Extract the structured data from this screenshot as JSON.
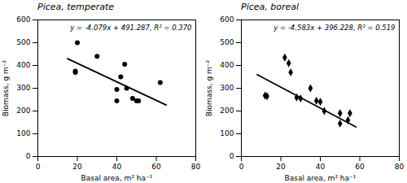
{
  "chart_data": [
    {
      "type": "scatter",
      "title": "Picea, temperate",
      "annotation": "y = -4.079x + 491.287, R² = 0.370",
      "series": [
        {
          "type": "scatter",
          "marker": "circle",
          "color": "black",
          "x": [
            19,
            19,
            20,
            30,
            40,
            40,
            42,
            44,
            45,
            48,
            50,
            51,
            62
          ],
          "values": [
            375,
            370,
            500,
            440,
            295,
            245,
            350,
            405,
            300,
            255,
            245,
            245,
            325
          ]
        },
        {
          "type": "line",
          "color": "black",
          "x": [
            15,
            65
          ],
          "values": [
            430.102,
            226.152
          ]
        }
      ],
      "xlabel": "Basal area, m² ha⁻¹",
      "ylabel": "Biomass, g m⁻²",
      "xlim": [
        0,
        80
      ],
      "ylim": [
        0,
        600
      ],
      "xticks": [
        0,
        20,
        40,
        60,
        80
      ],
      "yticks": [
        0,
        100,
        200,
        300,
        400,
        500,
        600
      ],
      "grid": false
    },
    {
      "type": "scatter",
      "title": "Picea, boreal",
      "annotation": "y = -4.583x + 396.228, R² = 0.519",
      "series": [
        {
          "type": "scatter",
          "marker": "diamond",
          "color": "black",
          "x": [
            12,
            13,
            22,
            24,
            25,
            28,
            30,
            35,
            38,
            40,
            42,
            50,
            50,
            54,
            55
          ],
          "values": [
            268,
            265,
            435,
            410,
            370,
            260,
            255,
            300,
            245,
            240,
            200,
            145,
            190,
            160,
            190
          ]
        },
        {
          "type": "line",
          "color": "black",
          "x": [
            8,
            58
          ],
          "values": [
            359.564,
            130.414
          ]
        }
      ],
      "xlabel": "Basal area, m² ha⁻¹",
      "ylabel": "Biomass, g m⁻²",
      "xlim": [
        0,
        80
      ],
      "ylim": [
        0,
        600
      ],
      "xticks": [
        0,
        20,
        40,
        60,
        80
      ],
      "yticks": [
        0,
        100,
        200,
        300,
        400,
        500,
        600
      ],
      "grid": false
    }
  ]
}
